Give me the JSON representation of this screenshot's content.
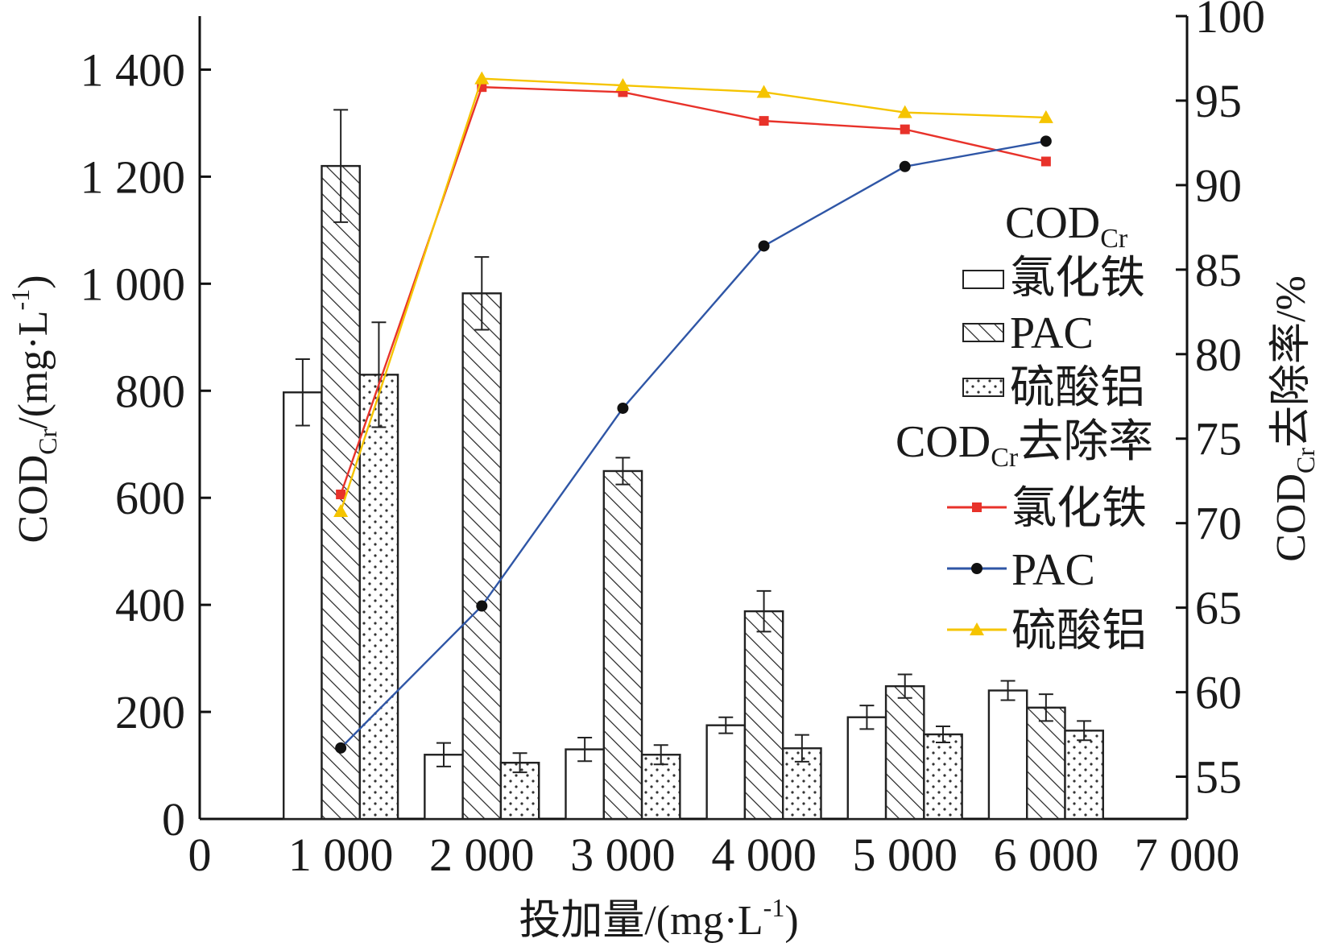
{
  "chart_data": {
    "type": "bar",
    "x": {
      "label": "投加量/(mg·L-1)",
      "label_main": "投加量/(mg·L",
      "label_sup": "-1",
      "label_end": ")",
      "range": [
        0,
        7000
      ],
      "ticks": [
        0,
        1000,
        2000,
        3000,
        4000,
        5000,
        6000,
        7000
      ],
      "tick_labels": [
        "0",
        "1 000",
        "2 000",
        "3 000",
        "4 000",
        "5 000",
        "6 000",
        "7 000"
      ],
      "categories": [
        1000,
        2000,
        3000,
        4000,
        5000,
        6000
      ]
    },
    "y_left": {
      "label": "CODCr/(mg·L-1)",
      "label_main": "COD",
      "label_sub": "Cr",
      "label_rest": "/(mg·L",
      "label_sup": "-1",
      "label_end": ")",
      "range": [
        0,
        1500
      ],
      "ticks": [
        0,
        200,
        400,
        600,
        800,
        1000,
        1200,
        1400
      ],
      "tick_labels": [
        "0",
        "200",
        "400",
        "600",
        "800",
        "1 000",
        "1 200",
        "1 400"
      ]
    },
    "y_right": {
      "label": "CODCr去除率/%",
      "label_main": "COD",
      "label_sub": "Cr",
      "label_rest": "去除率/%",
      "range": [
        52.5,
        100
      ],
      "ticks": [
        55,
        60,
        65,
        70,
        75,
        80,
        85,
        90,
        95,
        100
      ],
      "tick_labels": [
        "55",
        "60",
        "65",
        "70",
        "75",
        "80",
        "85",
        "90",
        "95",
        "100"
      ]
    },
    "bar_series": [
      {
        "name": "氯化铁",
        "pattern": "none",
        "values": [
          797,
          120,
          130,
          175,
          190,
          240
        ],
        "errors": [
          62,
          22,
          22,
          15,
          22,
          18
        ]
      },
      {
        "name": "PAC",
        "pattern": "hatch",
        "values": [
          1220,
          982,
          650,
          388,
          248,
          208
        ],
        "errors": [
          105,
          68,
          25,
          38,
          22,
          25
        ]
      },
      {
        "name": "硫酸铝",
        "pattern": "dots",
        "values": [
          830,
          105,
          120,
          132,
          158,
          165
        ],
        "errors": [
          98,
          18,
          18,
          25,
          15,
          18
        ]
      }
    ],
    "line_series": [
      {
        "name": "氯化铁",
        "color": "#e8322a",
        "marker": "square",
        "x": [
          1000,
          2000,
          3000,
          4000,
          5000,
          6000
        ],
        "values": [
          71.7,
          95.8,
          95.5,
          93.8,
          93.3,
          91.4
        ]
      },
      {
        "name": "PAC",
        "color": "#2f56a6",
        "marker": "circle",
        "x": [
          1000,
          2000,
          3000,
          4000,
          5000,
          6000
        ],
        "values": [
          56.7,
          65.1,
          76.8,
          86.4,
          91.1,
          92.6
        ]
      },
      {
        "name": "硫酸铝",
        "color": "#f5c400",
        "marker": "triangle",
        "x": [
          1000,
          2000,
          3000,
          4000,
          5000,
          6000
        ],
        "values": [
          70.7,
          96.3,
          95.9,
          95.5,
          94.3,
          94.0
        ]
      }
    ],
    "legend": {
      "bars_title_main": "COD",
      "bars_title_sub": "Cr",
      "lines_title_main": "COD",
      "lines_title_sub": "Cr",
      "lines_title_rest": "去除率",
      "bar_items": [
        "氯化铁",
        "PAC",
        "硫酸铝"
      ],
      "line_items": [
        "氯化铁",
        "PAC",
        "硫酸铝"
      ],
      "placement": "right"
    },
    "grid": false
  }
}
